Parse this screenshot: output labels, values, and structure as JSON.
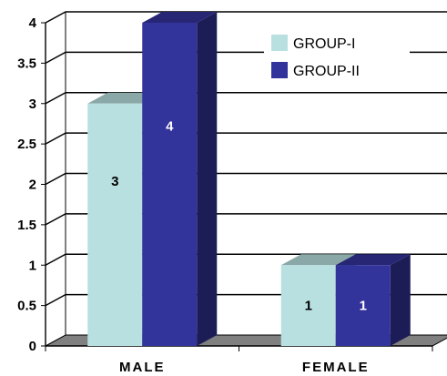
{
  "chart_data": {
    "type": "bar",
    "title": "",
    "xlabel": "",
    "ylabel": "",
    "categories": [
      "MALE",
      "FEMALE"
    ],
    "series": [
      {
        "name": "GROUP-I",
        "values": [
          3,
          1
        ],
        "color": "#b8e0e0"
      },
      {
        "name": "GROUP-II",
        "values": [
          4,
          1
        ],
        "color": "#33339c"
      }
    ],
    "ylim": [
      0,
      4
    ],
    "yticks": [
      "0",
      "0.5",
      "1",
      "1.5",
      "2",
      "2.5",
      "3",
      "3.5",
      "4"
    ],
    "grid": true,
    "legend": "top-right",
    "data_labels": true,
    "colors": {
      "wall": "#ffffff",
      "floor": "#808080",
      "grid": "#000000"
    }
  }
}
